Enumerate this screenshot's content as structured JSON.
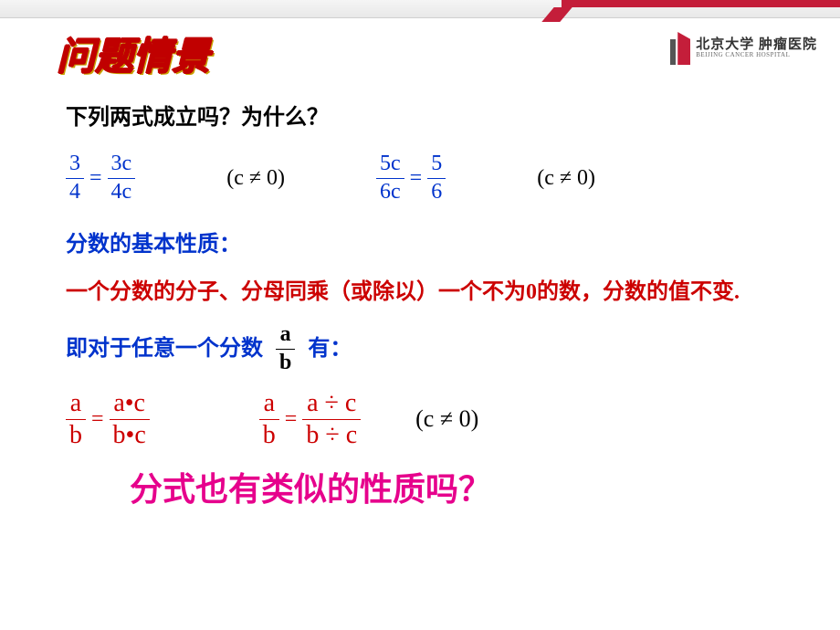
{
  "header": {
    "logo_cn": "北京大学 肿瘤医院",
    "logo_en": "BEIJING CANCER HOSPITAL"
  },
  "slide": {
    "title": "问题情景"
  },
  "text": {
    "question": "下列两式成立吗？为什么？",
    "property_label": "分数的基本性质：",
    "property_text": "一个分数的分子、分母同乘（或除以）一个不为0的数，分数的值不变.",
    "general_prefix": "即对于任意一个分数",
    "general_suffix": "有：",
    "final_question": "分式也有类似的性质吗？"
  },
  "eq1": {
    "lhs_num": "3",
    "lhs_den": "4",
    "rhs_num": "3c",
    "rhs_den": "4c",
    "cond": "(c ≠ 0)"
  },
  "eq2": {
    "lhs_num": "5c",
    "lhs_den": "6c",
    "rhs_num": "5",
    "rhs_den": "6",
    "cond": "(c ≠ 0)"
  },
  "general_frac": {
    "num": "a",
    "den": "b"
  },
  "eq3": {
    "lhs_num": "a",
    "lhs_den": "b",
    "rhs_num": "a•c",
    "rhs_den": "b•c"
  },
  "eq4": {
    "lhs_num": "a",
    "lhs_den": "b",
    "rhs_num": "a ÷ c",
    "rhs_den": "b ÷ c",
    "cond": "(c ≠ 0)"
  },
  "colors": {
    "title_red": "#c00000",
    "text_blue": "#0033cc",
    "text_red": "#cc0000",
    "magenta": "#e6008c",
    "accent": "#c41e3a"
  },
  "equals": "="
}
